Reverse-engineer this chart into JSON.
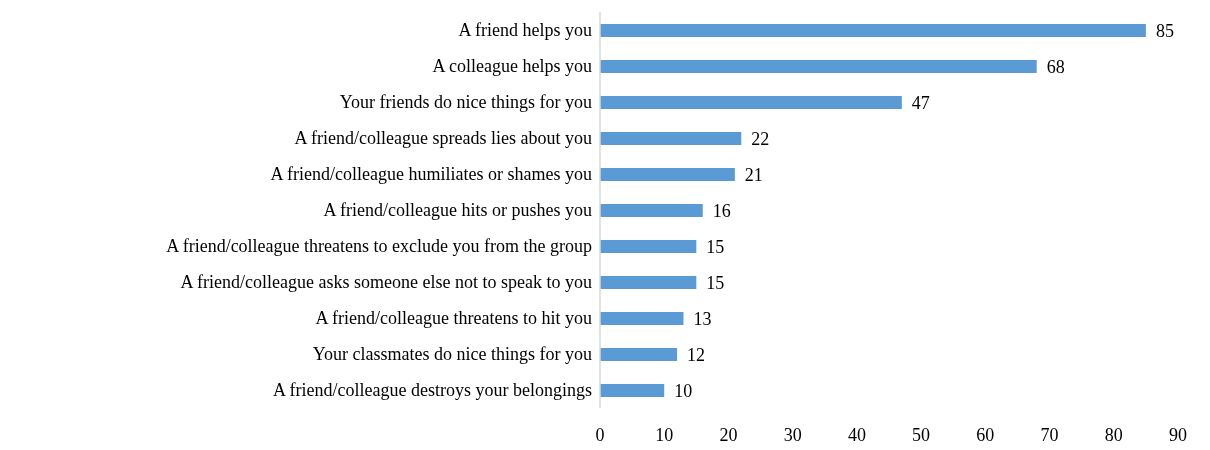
{
  "chart_data": {
    "type": "bar",
    "orientation": "horizontal",
    "categories": [
      "A friend helps you",
      "A colleague helps you",
      "Your friends do nice things for you",
      "A friend/colleague spreads lies about you",
      "A friend/colleague humiliates or shames you",
      "A friend/colleague hits or pushes you",
      "A friend/colleague threatens to exclude you from the group",
      "A friend/colleague asks someone else not to speak to you",
      "A friend/colleague threatens to hit you",
      "Your classmates do nice things for you",
      "A friend/colleague destroys your belongings"
    ],
    "values": [
      85,
      68,
      47,
      22,
      21,
      16,
      15,
      15,
      13,
      12,
      10
    ],
    "color": "#5b9bd5",
    "xlim": [
      0,
      90
    ],
    "xticks": [
      0,
      10,
      20,
      30,
      40,
      50,
      60,
      70,
      80,
      90
    ],
    "data_labels": true
  }
}
